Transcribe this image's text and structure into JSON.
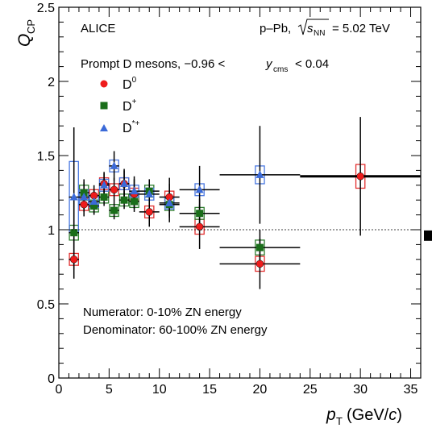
{
  "chart_data": {
    "type": "scatter",
    "experiment_label": "ALICE",
    "system_label_prefix": "p–Pb,",
    "energy_sqrt": "s",
    "energy_sub": "NN",
    "energy_value": "= 5.02 TeV",
    "selection_text": "Prompt D mesons, −0.96 <",
    "selection_y": "y",
    "selection_sub": "cms",
    "selection_tail": "< 0.04",
    "numerator_text": "Numerator: 0-10% ZN energy",
    "denominator_text": "Denominator: 60-100% ZN energy",
    "xlabel_main": "p",
    "xlabel_sub": "T",
    "xlabel_units_prefix": "(GeV/",
    "xlabel_units_c": "c",
    "xlabel_units_suffix": ")",
    "ylabel_main": "Q",
    "ylabel_sub": "CP",
    "xlim": [
      0,
      36
    ],
    "ylim": [
      0,
      2.5
    ],
    "x_ticks": [
      "0",
      "5",
      "10",
      "15",
      "20",
      "25",
      "30",
      "35"
    ],
    "y_ticks": [
      "0",
      "0.5",
      "1",
      "1.5",
      "2",
      "2.5"
    ],
    "reference_line": 1.0,
    "colors": {
      "D0": "#ee1c1c",
      "Dplus": "#1a6e1a",
      "Dstar": "#3b6ad8",
      "box_D0": "#e23030",
      "box_Dplus": "#2e7d2e",
      "box_Dstar": "#4a78e0"
    },
    "series": [
      {
        "name": "D",
        "sup": "0",
        "marker": "circle",
        "points": [
          {
            "x": 1.5,
            "y": 0.8,
            "xlo": 1,
            "xhi": 2,
            "stat": 0.13,
            "syst": 0.04
          },
          {
            "x": 2.5,
            "y": 1.17,
            "xlo": 2,
            "xhi": 3,
            "stat": 0.08,
            "syst": 0.04
          },
          {
            "x": 3.5,
            "y": 1.23,
            "xlo": 3,
            "xhi": 4,
            "stat": 0.07,
            "syst": 0.04
          },
          {
            "x": 4.5,
            "y": 1.31,
            "xlo": 4,
            "xhi": 5,
            "stat": 0.08,
            "syst": 0.04
          },
          {
            "x": 5.5,
            "y": 1.27,
            "xlo": 5,
            "xhi": 6,
            "stat": 0.08,
            "syst": 0.04
          },
          {
            "x": 6.5,
            "y": 1.31,
            "xlo": 6,
            "xhi": 7,
            "stat": 0.09,
            "syst": 0.04
          },
          {
            "x": 7.5,
            "y": 1.24,
            "xlo": 7,
            "xhi": 8,
            "stat": 0.1,
            "syst": 0.04
          },
          {
            "x": 9.0,
            "y": 1.12,
            "xlo": 8,
            "xhi": 10,
            "stat": 0.1,
            "syst": 0.04
          },
          {
            "x": 11.0,
            "y": 1.22,
            "xlo": 10,
            "xhi": 12,
            "stat": 0.13,
            "syst": 0.04
          },
          {
            "x": 14.0,
            "y": 1.02,
            "xlo": 12,
            "xhi": 16,
            "stat": 0.15,
            "syst": 0.05
          },
          {
            "x": 20.0,
            "y": 0.77,
            "xlo": 16,
            "xhi": 24,
            "stat": 0.17,
            "syst": 0.05
          },
          {
            "x": 30.0,
            "y": 1.36,
            "xlo": 24,
            "xhi": 36,
            "stat": 0.4,
            "syst": 0.08
          }
        ]
      },
      {
        "name": "D",
        "sup": "+",
        "marker": "square",
        "points": [
          {
            "x": 1.5,
            "y": 0.98,
            "xlo": 1,
            "xhi": 2,
            "stat": 0.25,
            "syst": 0.05
          },
          {
            "x": 2.5,
            "y": 1.25,
            "xlo": 2,
            "xhi": 3,
            "stat": 0.09,
            "syst": 0.05
          },
          {
            "x": 3.5,
            "y": 1.16,
            "xlo": 3,
            "xhi": 4,
            "stat": 0.06,
            "syst": 0.04
          },
          {
            "x": 4.5,
            "y": 1.22,
            "xlo": 4,
            "xhi": 5,
            "stat": 0.06,
            "syst": 0.04
          },
          {
            "x": 5.5,
            "y": 1.13,
            "xlo": 5,
            "xhi": 6,
            "stat": 0.06,
            "syst": 0.04
          },
          {
            "x": 6.5,
            "y": 1.2,
            "xlo": 6,
            "xhi": 7,
            "stat": 0.06,
            "syst": 0.04
          },
          {
            "x": 7.5,
            "y": 1.19,
            "xlo": 7,
            "xhi": 8,
            "stat": 0.07,
            "syst": 0.04
          },
          {
            "x": 9.0,
            "y": 1.26,
            "xlo": 8,
            "xhi": 10,
            "stat": 0.08,
            "syst": 0.04
          },
          {
            "x": 11.0,
            "y": 1.17,
            "xlo": 10,
            "xhi": 12,
            "stat": 0.09,
            "syst": 0.04
          },
          {
            "x": 14.0,
            "y": 1.11,
            "xlo": 12,
            "xhi": 16,
            "stat": 0.1,
            "syst": 0.04
          },
          {
            "x": 20.0,
            "y": 0.88,
            "xlo": 16,
            "xhi": 24,
            "stat": 0.12,
            "syst": 0.05
          }
        ]
      },
      {
        "name": "D",
        "sup": "*+",
        "marker": "triangle",
        "points": [
          {
            "x": 1.5,
            "y": 1.22,
            "xlo": 1,
            "xhi": 2,
            "stat": 0.47,
            "syst": 0.24
          },
          {
            "x": 2.5,
            "y": 1.22,
            "xlo": 2,
            "xhi": 3,
            "stat": 0.1,
            "syst": 0.05
          },
          {
            "x": 3.5,
            "y": 1.19,
            "xlo": 3,
            "xhi": 4,
            "stat": 0.08,
            "syst": 0.04
          },
          {
            "x": 4.5,
            "y": 1.3,
            "xlo": 4,
            "xhi": 5,
            "stat": 0.08,
            "syst": 0.04
          },
          {
            "x": 5.5,
            "y": 1.43,
            "xlo": 5,
            "xhi": 6,
            "stat": 0.1,
            "syst": 0.04
          },
          {
            "x": 6.5,
            "y": 1.31,
            "xlo": 6,
            "xhi": 7,
            "stat": 0.1,
            "syst": 0.04
          },
          {
            "x": 7.5,
            "y": 1.26,
            "xlo": 7,
            "xhi": 8,
            "stat": 0.1,
            "syst": 0.04
          },
          {
            "x": 9.0,
            "y": 1.24,
            "xlo": 8,
            "xhi": 10,
            "stat": 0.1,
            "syst": 0.04
          },
          {
            "x": 11.0,
            "y": 1.18,
            "xlo": 10,
            "xhi": 12,
            "stat": 0.13,
            "syst": 0.04
          },
          {
            "x": 14.0,
            "y": 1.27,
            "xlo": 12,
            "xhi": 16,
            "stat": 0.16,
            "syst": 0.04
          },
          {
            "x": 20.0,
            "y": 1.37,
            "xlo": 16,
            "xhi": 24,
            "stat": 0.33,
            "syst": 0.06
          }
        ]
      }
    ],
    "global_uncertainty_box": {
      "y_center": 0.96,
      "half_height": 0.035
    }
  }
}
